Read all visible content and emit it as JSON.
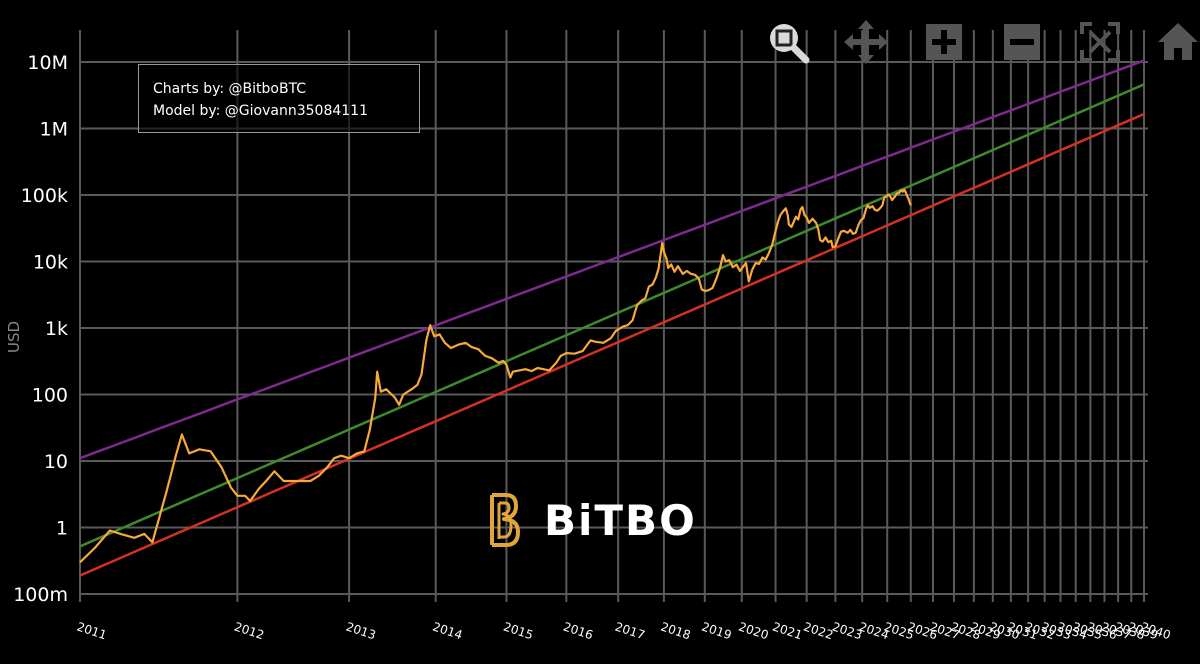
{
  "credits": {
    "line1": "Charts by: @BitboBTC",
    "line2": "Model by: @Giovann35084111"
  },
  "logo_text": "BiTBO",
  "modebar": {
    "buttons": [
      "zoom-icon",
      "pan-icon",
      "zoom-in-icon",
      "zoom-out-icon",
      "autoscale-icon",
      "home-icon"
    ]
  },
  "colors": {
    "background": "#000000",
    "grid": "#5a5a5a",
    "price": "#f7a93b",
    "upper_band": "#7d2a8f",
    "fair_value": "#3e8a2c",
    "lower_band": "#d33125",
    "logo_gold": "#e0a63c"
  },
  "chart_data": {
    "type": "line",
    "title": "",
    "xlabel": "",
    "ylabel": "USD",
    "y_scale": "log",
    "x_scale": "log (time since genesis)",
    "ylim": [
      0.1,
      10000000
    ],
    "grid": true,
    "y_ticks": [
      {
        "value": 0.1,
        "label": "100m"
      },
      {
        "value": 1,
        "label": "1"
      },
      {
        "value": 10,
        "label": "10"
      },
      {
        "value": 100,
        "label": "100"
      },
      {
        "value": 1000,
        "label": "1k"
      },
      {
        "value": 10000,
        "label": "10k"
      },
      {
        "value": 100000,
        "label": "100k"
      },
      {
        "value": 1000000,
        "label": "1M"
      },
      {
        "value": 10000000,
        "label": "10M"
      }
    ],
    "x_ticks": [
      "2011",
      "2012",
      "2013",
      "2014",
      "2015",
      "2016",
      "2017",
      "2018",
      "2019",
      "2020",
      "2021",
      "2022",
      "2023",
      "2024",
      "2025",
      "2026",
      "2027",
      "2028",
      "2029",
      "2030",
      "2031",
      "2032",
      "2033",
      "2034",
      "2035",
      "2036",
      "2037",
      "2038",
      "2039",
      "2040"
    ],
    "series": [
      {
        "key": "upper_band",
        "color": "#7d2a8f",
        "points": [
          [
            2011.0,
            11
          ],
          [
            2040.0,
            10500000
          ]
        ]
      },
      {
        "key": "fair_value",
        "color": "#3e8a2c",
        "points": [
          [
            2011.0,
            0.52
          ],
          [
            2040.0,
            4600000
          ]
        ]
      },
      {
        "key": "lower_band",
        "color": "#d33125",
        "points": [
          [
            2011.0,
            0.19
          ],
          [
            2040.0,
            1650000
          ]
        ]
      },
      {
        "key": "price",
        "color": "#f7a93b",
        "points": [
          [
            2011.0,
            0.3
          ],
          [
            2011.08,
            0.5
          ],
          [
            2011.16,
            0.9
          ],
          [
            2011.22,
            0.8
          ],
          [
            2011.3,
            0.7
          ],
          [
            2011.36,
            0.8
          ],
          [
            2011.41,
            0.6
          ],
          [
            2011.5,
            3.5
          ],
          [
            2011.56,
            12
          ],
          [
            2011.6,
            25
          ],
          [
            2011.65,
            13
          ],
          [
            2011.72,
            15
          ],
          [
            2011.8,
            14
          ],
          [
            2011.88,
            8
          ],
          [
            2011.95,
            4
          ],
          [
            2012.0,
            3
          ],
          [
            2012.06,
            3
          ],
          [
            2012.1,
            2.5
          ],
          [
            2012.17,
            3.8
          ],
          [
            2012.23,
            5
          ],
          [
            2012.3,
            7
          ],
          [
            2012.38,
            5
          ],
          [
            2012.45,
            5
          ],
          [
            2012.55,
            5
          ],
          [
            2012.62,
            5
          ],
          [
            2012.7,
            6
          ],
          [
            2012.78,
            8
          ],
          [
            2012.85,
            11
          ],
          [
            2012.92,
            12
          ],
          [
            2013.0,
            11
          ],
          [
            2013.08,
            13
          ],
          [
            2013.16,
            14
          ],
          [
            2013.22,
            30
          ],
          [
            2013.28,
            90
          ],
          [
            2013.3,
            220
          ],
          [
            2013.34,
            110
          ],
          [
            2013.4,
            120
          ],
          [
            2013.5,
            90
          ],
          [
            2013.55,
            70
          ],
          [
            2013.6,
            100
          ],
          [
            2013.7,
            120
          ],
          [
            2013.77,
            140
          ],
          [
            2013.82,
            200
          ],
          [
            2013.88,
            650
          ],
          [
            2013.93,
            1100
          ],
          [
            2013.98,
            750
          ],
          [
            2014.05,
            800
          ],
          [
            2014.12,
            600
          ],
          [
            2014.2,
            500
          ],
          [
            2014.3,
            560
          ],
          [
            2014.4,
            600
          ],
          [
            2014.48,
            520
          ],
          [
            2014.58,
            480
          ],
          [
            2014.68,
            380
          ],
          [
            2014.78,
            350
          ],
          [
            2014.88,
            300
          ],
          [
            2014.95,
            320
          ],
          [
            2015.0,
            280
          ],
          [
            2015.06,
            180
          ],
          [
            2015.1,
            220
          ],
          [
            2015.2,
            230
          ],
          [
            2015.3,
            240
          ],
          [
            2015.4,
            225
          ],
          [
            2015.5,
            250
          ],
          [
            2015.6,
            240
          ],
          [
            2015.7,
            230
          ],
          [
            2015.82,
            300
          ],
          [
            2015.9,
            380
          ],
          [
            2016.0,
            420
          ],
          [
            2016.15,
            410
          ],
          [
            2016.3,
            450
          ],
          [
            2016.45,
            650
          ],
          [
            2016.55,
            620
          ],
          [
            2016.7,
            600
          ],
          [
            2016.85,
            700
          ],
          [
            2016.95,
            900
          ],
          [
            2017.0,
            950
          ],
          [
            2017.1,
            1050
          ],
          [
            2017.2,
            1100
          ],
          [
            2017.3,
            1300
          ],
          [
            2017.4,
            2200
          ],
          [
            2017.5,
            2600
          ],
          [
            2017.58,
            2800
          ],
          [
            2017.66,
            4200
          ],
          [
            2017.74,
            4500
          ],
          [
            2017.82,
            5800
          ],
          [
            2017.88,
            8000
          ],
          [
            2017.92,
            12000
          ],
          [
            2017.96,
            19000
          ],
          [
            2018.0,
            14000
          ],
          [
            2018.06,
            11000
          ],
          [
            2018.1,
            8000
          ],
          [
            2018.17,
            9000
          ],
          [
            2018.25,
            7000
          ],
          [
            2018.33,
            8500
          ],
          [
            2018.45,
            6500
          ],
          [
            2018.55,
            7200
          ],
          [
            2018.65,
            6500
          ],
          [
            2018.75,
            6300
          ],
          [
            2018.85,
            5500
          ],
          [
            2018.92,
            3800
          ],
          [
            2019.0,
            3600
          ],
          [
            2019.1,
            3700
          ],
          [
            2019.2,
            4000
          ],
          [
            2019.3,
            5500
          ],
          [
            2019.4,
            8000
          ],
          [
            2019.48,
            12500
          ],
          [
            2019.55,
            10000
          ],
          [
            2019.65,
            10500
          ],
          [
            2019.75,
            8200
          ],
          [
            2019.85,
            9000
          ],
          [
            2019.95,
            7200
          ],
          [
            2020.05,
            8500
          ],
          [
            2020.12,
            9500
          ],
          [
            2020.2,
            5000
          ],
          [
            2020.3,
            7500
          ],
          [
            2020.4,
            9500
          ],
          [
            2020.5,
            9200
          ],
          [
            2020.6,
            11500
          ],
          [
            2020.7,
            10700
          ],
          [
            2020.8,
            13500
          ],
          [
            2020.9,
            18000
          ],
          [
            2021.0,
            29000
          ],
          [
            2021.08,
            40000
          ],
          [
            2021.15,
            50000
          ],
          [
            2021.25,
            58000
          ],
          [
            2021.32,
            63000
          ],
          [
            2021.38,
            50000
          ],
          [
            2021.42,
            36000
          ],
          [
            2021.5,
            33000
          ],
          [
            2021.58,
            40000
          ],
          [
            2021.65,
            47000
          ],
          [
            2021.72,
            43000
          ],
          [
            2021.8,
            61000
          ],
          [
            2021.86,
            66000
          ],
          [
            2021.93,
            50000
          ],
          [
            2022.0,
            46000
          ],
          [
            2022.08,
            38000
          ],
          [
            2022.2,
            44000
          ],
          [
            2022.32,
            38000
          ],
          [
            2022.4,
            30000
          ],
          [
            2022.46,
            21000
          ],
          [
            2022.55,
            20000
          ],
          [
            2022.65,
            23000
          ],
          [
            2022.75,
            19500
          ],
          [
            2022.85,
            20500
          ],
          [
            2022.9,
            16500
          ],
          [
            2023.0,
            16800
          ],
          [
            2023.1,
            22000
          ],
          [
            2023.2,
            28000
          ],
          [
            2023.3,
            29000
          ],
          [
            2023.45,
            27000
          ],
          [
            2023.55,
            30000
          ],
          [
            2023.65,
            26000
          ],
          [
            2023.75,
            27000
          ],
          [
            2023.85,
            35000
          ],
          [
            2023.95,
            42000
          ],
          [
            2024.05,
            45000
          ],
          [
            2024.15,
            62000
          ],
          [
            2024.22,
            70000
          ],
          [
            2024.3,
            64000
          ],
          [
            2024.4,
            68000
          ],
          [
            2024.5,
            60000
          ],
          [
            2024.6,
            58000
          ],
          [
            2024.7,
            63000
          ],
          [
            2024.8,
            70000
          ],
          [
            2024.88,
            92000
          ],
          [
            2024.96,
            95000
          ],
          [
            2025.05,
            102000
          ],
          [
            2025.12,
            96000
          ],
          [
            2025.2,
            84000
          ],
          [
            2025.3,
            93000
          ],
          [
            2025.4,
            105000
          ],
          [
            2025.5,
            108000
          ],
          [
            2025.58,
            118000
          ],
          [
            2025.65,
            112000
          ],
          [
            2025.72,
            120000
          ],
          [
            2025.78,
            110000
          ],
          [
            2025.85,
            95000
          ],
          [
            2025.9,
            88000
          ],
          [
            2025.95,
            78000
          ],
          [
            2026.0,
            70000
          ]
        ]
      }
    ]
  }
}
